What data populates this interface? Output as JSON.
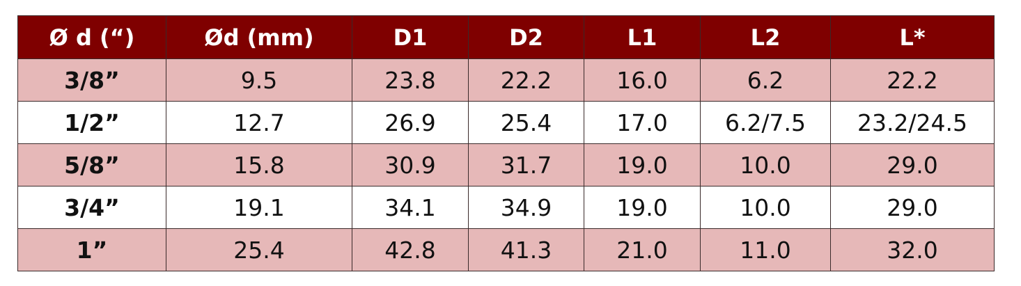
{
  "table": {
    "header": [
      "Ø d (“)",
      "Ød (mm)",
      "D1",
      "D2",
      "L1",
      "L2",
      "L*"
    ],
    "rows": [
      [
        "3/8”",
        "9.5",
        "23.8",
        "22.2",
        "16.0",
        "6.2",
        "22.2"
      ],
      [
        "1/2”",
        "12.7",
        "26.9",
        "25.4",
        "17.0",
        "6.2/7.5",
        "23.2/24.5"
      ],
      [
        "5/8”",
        "15.8",
        "30.9",
        "31.7",
        "19.0",
        "10.0",
        "29.0"
      ],
      [
        "3/4”",
        "19.1",
        "34.1",
        "34.9",
        "19.0",
        "10.0",
        "29.0"
      ],
      [
        "1”",
        "25.4",
        "42.8",
        "41.3",
        "21.0",
        "11.0",
        "32.0"
      ]
    ]
  }
}
